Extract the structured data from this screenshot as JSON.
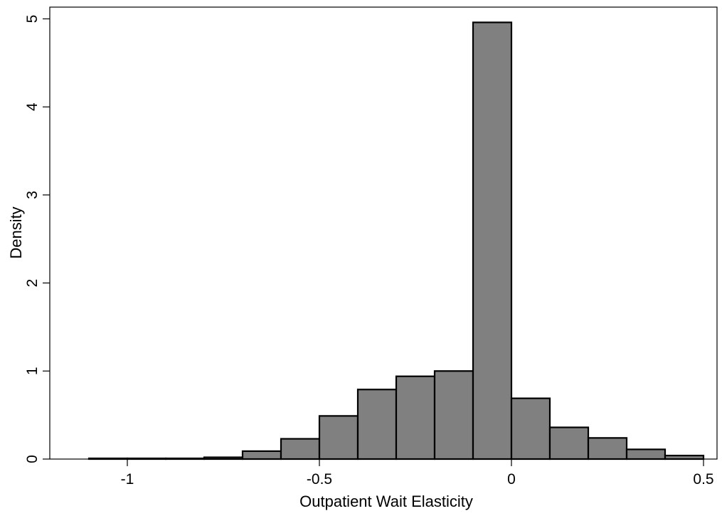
{
  "chart_data": {
    "type": "bar",
    "title": "",
    "xlabel": "Outpatient Wait Elasticity",
    "ylabel": "Density",
    "xlim": [
      -1.19,
      0.52
    ],
    "ylim": [
      0,
      5.1
    ],
    "x_ticks": [
      -1,
      -0.5,
      0,
      0.5
    ],
    "x_tick_labels": [
      "-1",
      "-0.5",
      "0",
      "0.5"
    ],
    "y_ticks": [
      0,
      1,
      2,
      3,
      4,
      5
    ],
    "y_tick_labels": [
      "0",
      "1",
      "2",
      "3",
      "4",
      "5"
    ],
    "grid": false,
    "bar_color": "#808080",
    "bar_edge_color": "#000000",
    "bins": [
      {
        "x0": -1.1,
        "x1": -1.0,
        "value": 0.003
      },
      {
        "x0": -1.0,
        "x1": -0.9,
        "value": 0.003
      },
      {
        "x0": -0.9,
        "x1": -0.8,
        "value": 0.003
      },
      {
        "x0": -0.8,
        "x1": -0.7,
        "value": 0.02
      },
      {
        "x0": -0.7,
        "x1": -0.6,
        "value": 0.09
      },
      {
        "x0": -0.6,
        "x1": -0.5,
        "value": 0.23
      },
      {
        "x0": -0.5,
        "x1": -0.4,
        "value": 0.49
      },
      {
        "x0": -0.4,
        "x1": -0.3,
        "value": 0.79
      },
      {
        "x0": -0.3,
        "x1": -0.2,
        "value": 0.94
      },
      {
        "x0": -0.2,
        "x1": -0.1,
        "value": 1.0
      },
      {
        "x0": -0.1,
        "x1": 0.0,
        "value": 4.96
      },
      {
        "x0": 0.0,
        "x1": 0.1,
        "value": 0.69
      },
      {
        "x0": 0.1,
        "x1": 0.2,
        "value": 0.36
      },
      {
        "x0": 0.2,
        "x1": 0.3,
        "value": 0.24
      },
      {
        "x0": 0.3,
        "x1": 0.4,
        "value": 0.11
      },
      {
        "x0": 0.4,
        "x1": 0.5,
        "value": 0.04
      }
    ]
  }
}
